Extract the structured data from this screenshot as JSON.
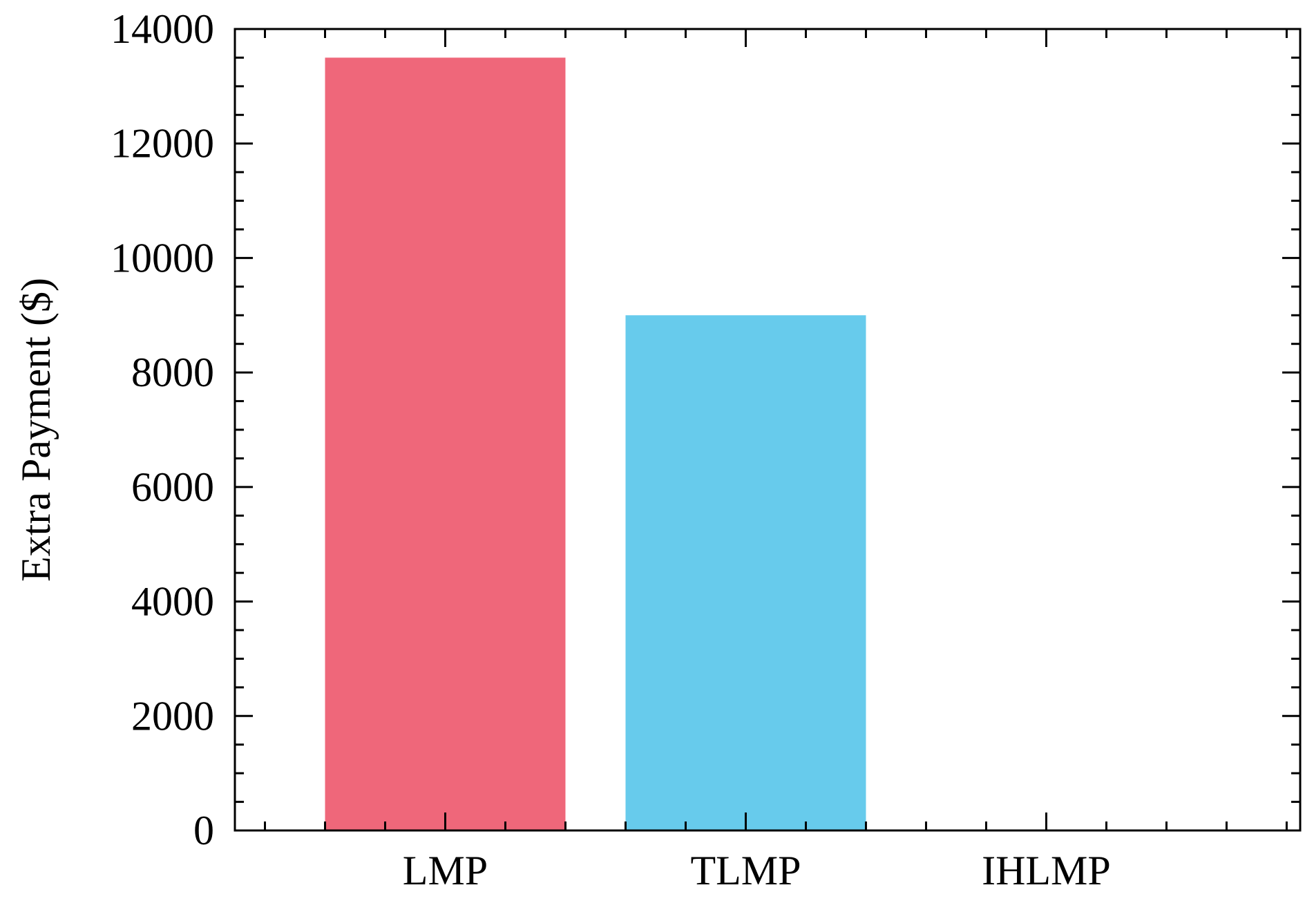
{
  "chart_data": {
    "type": "bar",
    "title": "",
    "xlabel": "",
    "ylabel": "Extra Payment ($)",
    "categories": [
      "LMP",
      "TLMP",
      "IHLMP"
    ],
    "values": [
      13500,
      9000,
      0
    ],
    "colors": [
      "#ef677a",
      "#67cbec",
      "#ffffff"
    ],
    "ylim": [
      0,
      14000
    ],
    "y_ticks": [
      0,
      2000,
      4000,
      6000,
      8000,
      10000,
      12000,
      14000
    ],
    "y_minor_step": 500,
    "x_minor_step": 0.2,
    "grid": false,
    "tick_direction": "in"
  }
}
